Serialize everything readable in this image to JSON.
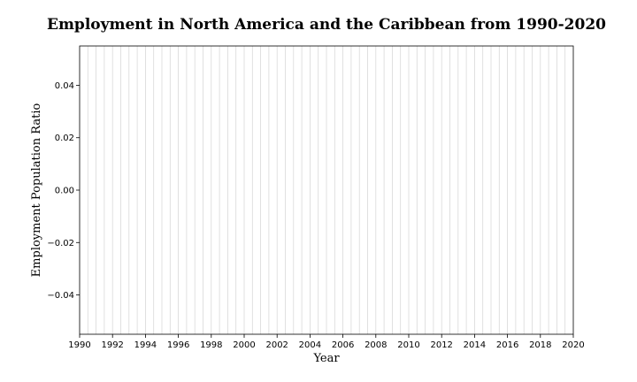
{
  "chart_data": {
    "type": "line",
    "title": "Employment in North America and the Caribbean from 1990-2020",
    "xlabel": "Year",
    "ylabel": "Employment Population Ratio",
    "xlim": [
      1990,
      2020
    ],
    "ylim": [
      -0.055,
      0.055
    ],
    "x_ticks": [
      1990,
      1992,
      1994,
      1996,
      1998,
      2000,
      2002,
      2004,
      2006,
      2008,
      2010,
      2012,
      2014,
      2016,
      2018,
      2020
    ],
    "y_ticks": [
      -0.04,
      -0.02,
      0.0,
      0.02,
      0.04
    ],
    "y_tick_labels": [
      "−0.04",
      "−0.02",
      "0.00",
      "0.02",
      "0.04"
    ],
    "vertical_grid": true,
    "vertical_grid_step_years": 0.5,
    "horizontal_grid": false,
    "series": []
  }
}
